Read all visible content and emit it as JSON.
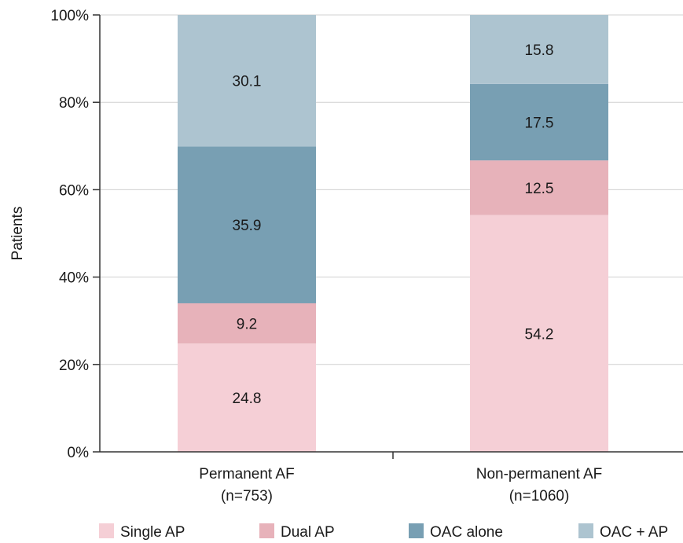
{
  "chart_data": {
    "type": "bar",
    "stacked": true,
    "orientation": "vertical",
    "ylabel": "Patients",
    "xlabel": "",
    "ylim": [
      0,
      100
    ],
    "y_ticks": [
      "0%",
      "20%",
      "40%",
      "60%",
      "80%",
      "100%"
    ],
    "categories": [
      [
        "Permanent AF",
        "(n=753)"
      ],
      [
        "Non-permanent AF",
        "(n=1060)"
      ]
    ],
    "series": [
      {
        "name": "Single AP",
        "color": "#f5cfd6",
        "values": [
          24.8,
          54.2
        ],
        "labels": [
          "24.8",
          "54.2"
        ]
      },
      {
        "name": "Dual AP",
        "color": "#e7b2ba",
        "values": [
          9.2,
          12.5
        ],
        "labels": [
          "9.2",
          "12.5"
        ]
      },
      {
        "name": "OAC alone",
        "color": "#789fb3",
        "values": [
          35.9,
          17.5
        ],
        "labels": [
          "35.9",
          "17.5"
        ]
      },
      {
        "name": "OAC + AP",
        "color": "#adc4d0",
        "values": [
          30.1,
          15.8
        ],
        "labels": [
          "30.1",
          "15.8"
        ]
      }
    ],
    "grid": true,
    "legend_position": "bottom"
  }
}
